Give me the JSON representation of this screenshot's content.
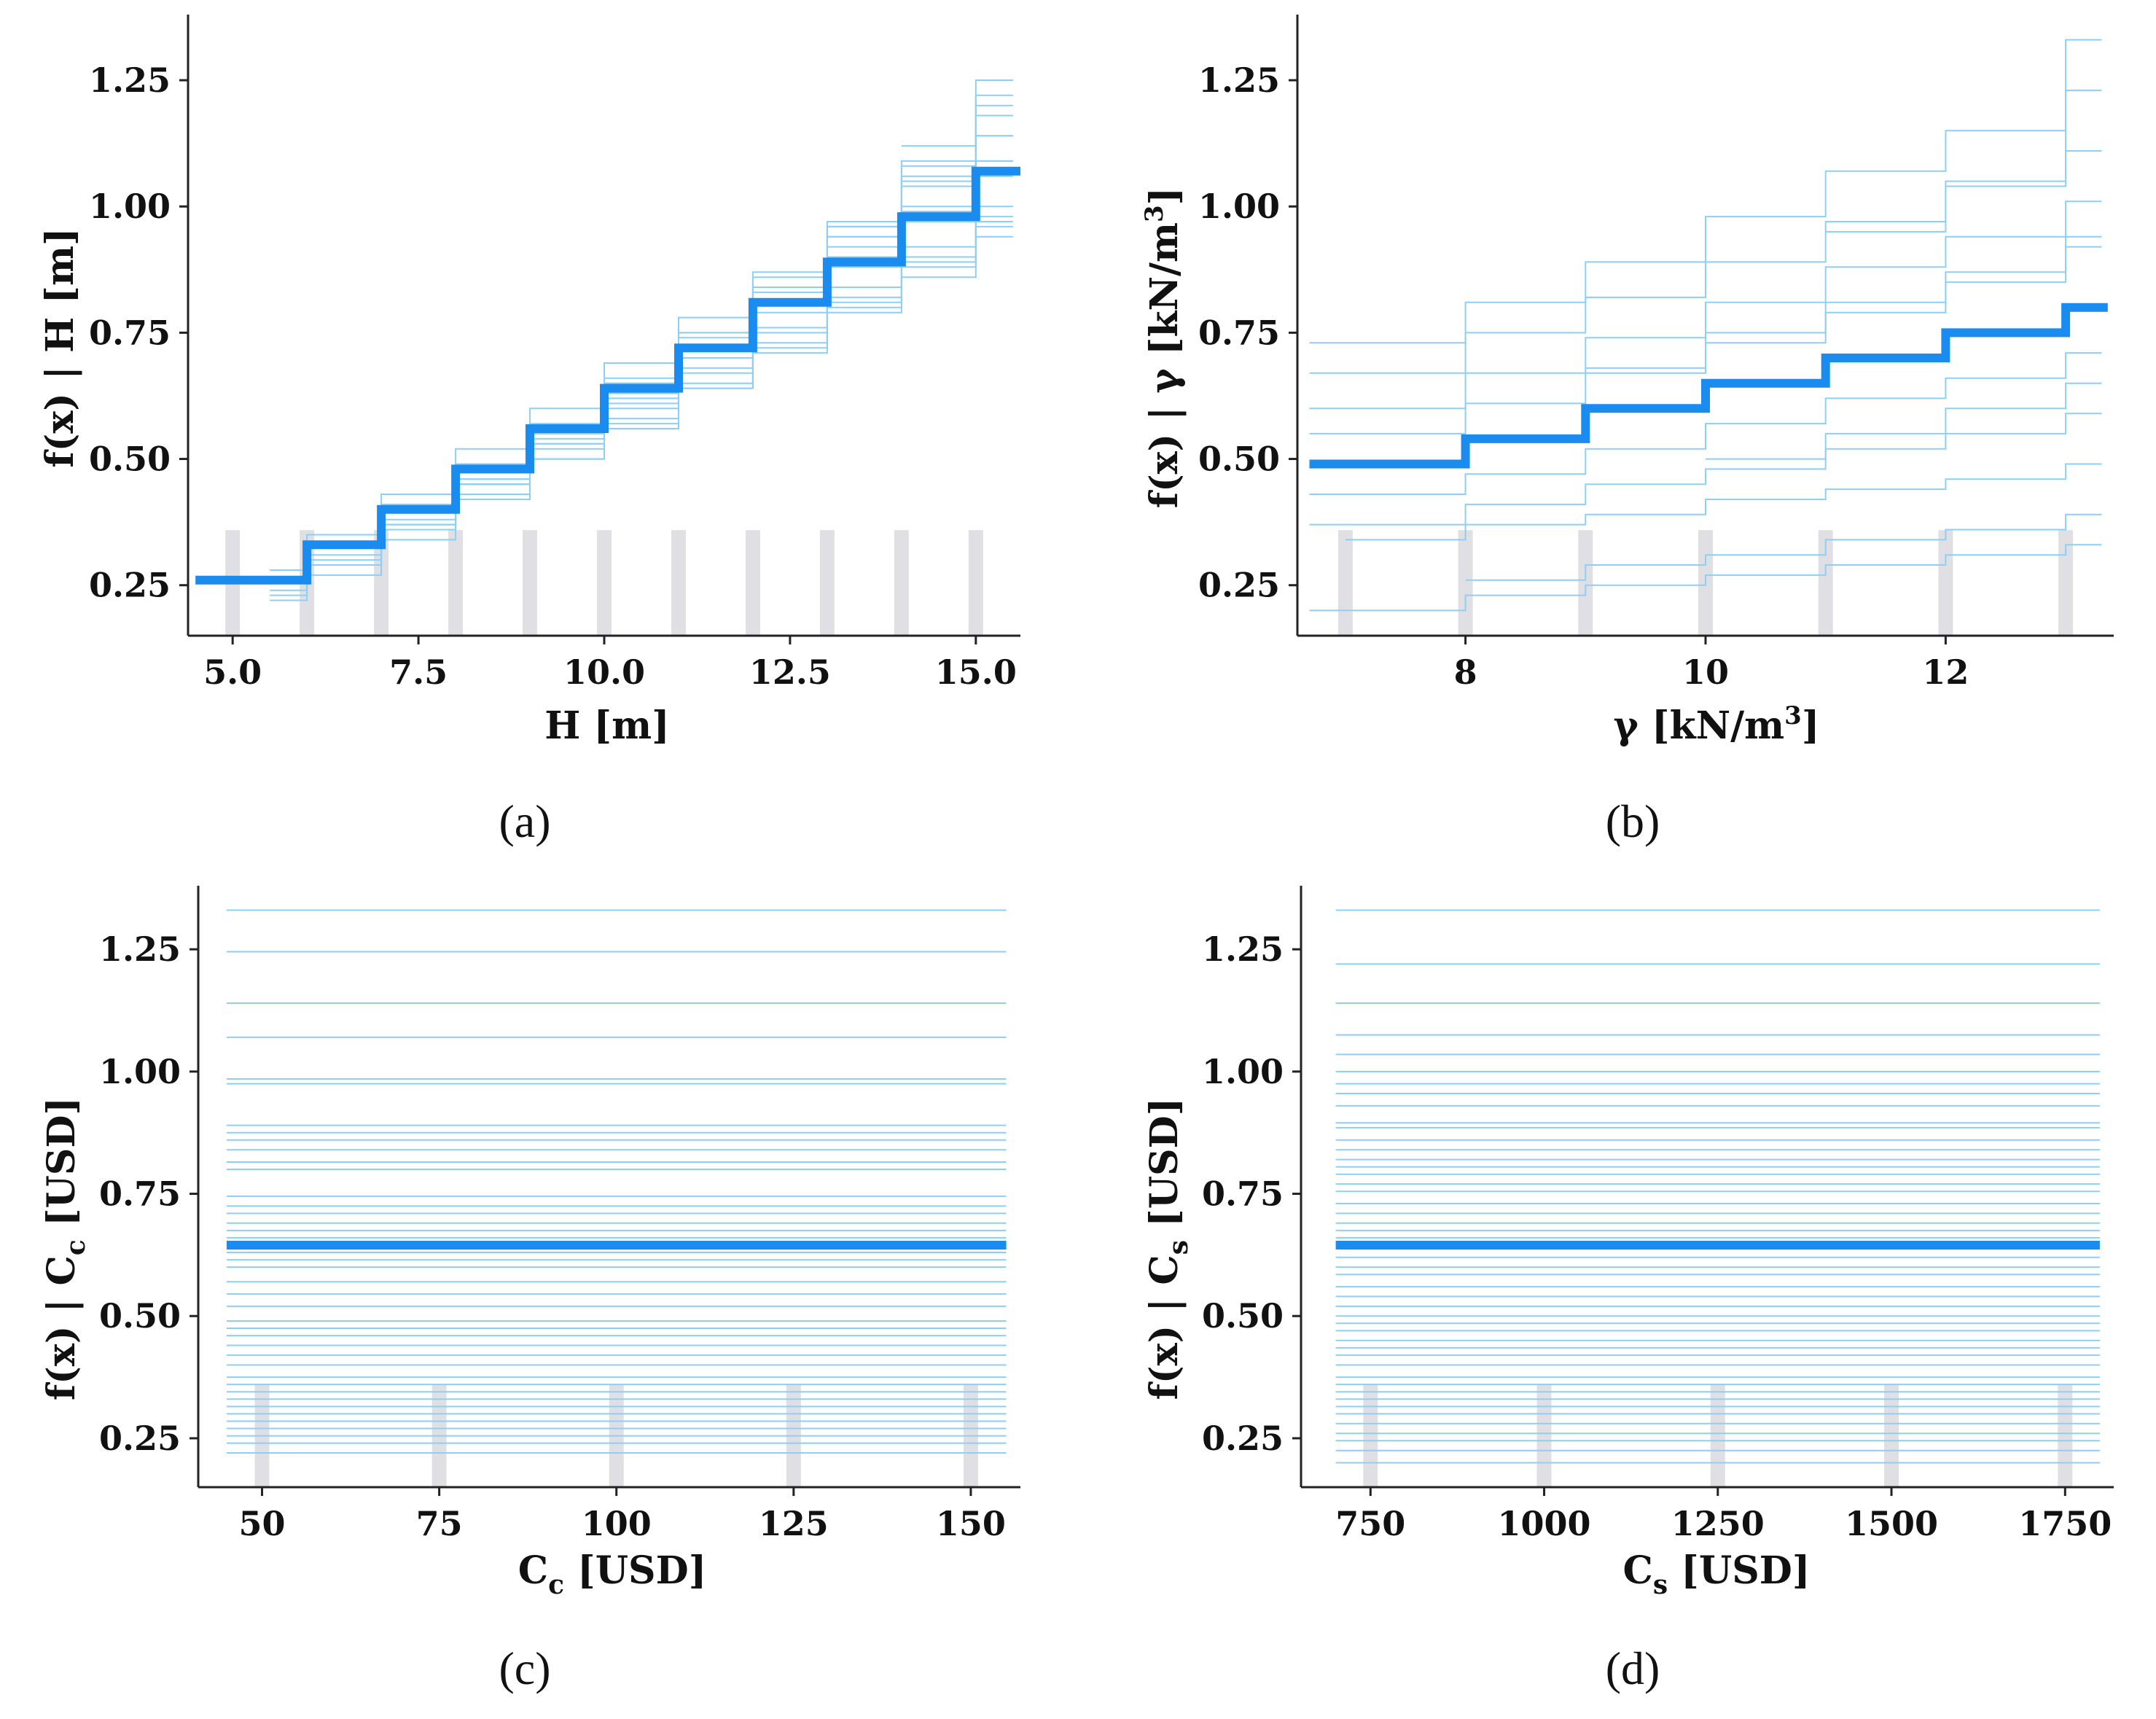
{
  "figure": {
    "panels": [
      "(a)",
      "(b)",
      "(c)",
      "(d)"
    ]
  },
  "colors": {
    "ice_line": "#8ccff7",
    "pdp_line": "#1a8cf0",
    "rug": "#e0e0e4",
    "axis": "#222222"
  },
  "chart_data": [
    {
      "type": "line",
      "panel": "(a)",
      "xlabel": "H [m]",
      "ylabel": "f(x) | H [m]",
      "xlim": [
        4.4,
        15.6
      ],
      "ylim": [
        0.15,
        1.38
      ],
      "xticks": [
        5.0,
        7.5,
        10.0,
        12.5,
        15.0
      ],
      "xtick_labels": [
        "5.0",
        "7.5",
        "10.0",
        "12.5",
        "15.0"
      ],
      "yticks": [
        0.25,
        0.5,
        0.75,
        1.0,
        1.25
      ],
      "ytick_labels": [
        "0.25",
        "0.50",
        "0.75",
        "1.00",
        "1.25"
      ],
      "rug": [
        5,
        6,
        7,
        8,
        9,
        10,
        11,
        12,
        13,
        14,
        15
      ],
      "ice_start": 4.5,
      "ice_end": 15.5,
      "pdp": {
        "x": [
          4.5,
          6,
          7,
          8,
          9,
          10,
          11,
          12,
          13,
          14,
          15,
          15.6
        ],
        "y": [
          0.26,
          0.33,
          0.4,
          0.48,
          0.56,
          0.64,
          0.72,
          0.81,
          0.89,
          0.98,
          1.07,
          1.07
        ]
      },
      "ice": [
        {
          "x": [
            5.5,
            6,
            7,
            8,
            9,
            10,
            11,
            12,
            13,
            14,
            15,
            15.5
          ],
          "y": [
            0.22,
            0.29,
            0.36,
            0.43,
            0.5,
            0.57,
            0.64,
            0.71,
            0.79,
            0.86,
            0.94,
            0.94
          ]
        },
        {
          "x": [
            5.5,
            6,
            7,
            8,
            9,
            10,
            11,
            12,
            13,
            14,
            15,
            15.5
          ],
          "y": [
            0.24,
            0.31,
            0.38,
            0.46,
            0.53,
            0.61,
            0.68,
            0.76,
            0.84,
            0.92,
            1.0,
            1.0
          ]
        },
        {
          "x": [
            5.5,
            6,
            7,
            8,
            9,
            10,
            11,
            12,
            13,
            14,
            15,
            15.5
          ],
          "y": [
            0.26,
            0.33,
            0.41,
            0.49,
            0.57,
            0.66,
            0.75,
            0.83,
            0.92,
            1.0,
            1.09,
            1.09
          ]
        },
        {
          "x": [
            5.5,
            6,
            7,
            8,
            9,
            10,
            11,
            12,
            13,
            14,
            15,
            15.5
          ],
          "y": [
            0.28,
            0.35,
            0.43,
            0.52,
            0.6,
            0.69,
            0.78,
            0.87,
            0.96,
            1.05,
            1.14,
            1.14
          ]
        },
        {
          "x": [
            5.5,
            6,
            7,
            8,
            9,
            10,
            11,
            12,
            13,
            14,
            15,
            15.5
          ],
          "y": [
            0.23,
            0.3,
            0.37,
            0.45,
            0.52,
            0.6,
            0.67,
            0.75,
            0.82,
            0.89,
            0.97,
            0.97
          ]
        },
        {
          "x": [
            6.0,
            7,
            8,
            9,
            10,
            11,
            12,
            13,
            14,
            15,
            15.5
          ],
          "y": [
            0.27,
            0.36,
            0.45,
            0.54,
            0.63,
            0.72,
            0.81,
            0.9,
            0.99,
            1.09,
            1.09
          ]
        },
        {
          "x": [
            7.0,
            8,
            9,
            10,
            11,
            12,
            13,
            14,
            15,
            15.5
          ],
          "y": [
            0.37,
            0.46,
            0.55,
            0.65,
            0.74,
            0.84,
            0.94,
            1.04,
            1.14,
            1.14
          ]
        },
        {
          "x": [
            7.0,
            8,
            9,
            10,
            11,
            12,
            13,
            14,
            15,
            15.5
          ],
          "y": [
            0.34,
            0.42,
            0.5,
            0.58,
            0.65,
            0.73,
            0.81,
            0.9,
            0.98,
            0.98
          ]
        },
        {
          "x": [
            8.0,
            9,
            10,
            11,
            12,
            13,
            14,
            15,
            15.5
          ],
          "y": [
            0.45,
            0.53,
            0.62,
            0.7,
            0.79,
            0.88,
            0.97,
            1.06,
            1.06
          ]
        },
        {
          "x": [
            9.0,
            10,
            11,
            12,
            13,
            14,
            15,
            15.5
          ],
          "y": [
            0.55,
            0.65,
            0.75,
            0.86,
            0.97,
            1.08,
            1.2,
            1.2
          ]
        },
        {
          "x": [
            10.0,
            11,
            12,
            13,
            14,
            15,
            15.5
          ],
          "y": [
            0.56,
            0.64,
            0.72,
            0.8,
            0.88,
            0.96,
            0.96
          ]
        },
        {
          "x": [
            12.0,
            13,
            14,
            15,
            15.5
          ],
          "y": [
            0.84,
            0.96,
            1.09,
            1.22,
            1.22
          ]
        },
        {
          "x": [
            13.0,
            14,
            15,
            15.5
          ],
          "y": [
            0.94,
            1.06,
            1.18,
            1.18
          ]
        },
        {
          "x": [
            14.0,
            15,
            15.5
          ],
          "y": [
            1.12,
            1.25,
            1.25
          ]
        }
      ]
    },
    {
      "type": "line",
      "panel": "(b)",
      "xlabel": "γ [kN/m³]",
      "ylabel": "f(x) | γ [kN/m³]",
      "xlim": [
        6.6,
        13.4
      ],
      "ylim": [
        0.15,
        1.38
      ],
      "xticks": [
        8,
        10,
        12
      ],
      "xtick_labels": [
        "8",
        "10",
        "12"
      ],
      "yticks": [
        0.25,
        0.5,
        0.75,
        1.0,
        1.25
      ],
      "ytick_labels": [
        "0.25",
        "0.50",
        "0.75",
        "1.00",
        "1.25"
      ],
      "rug": [
        7,
        8,
        9,
        10,
        11,
        12,
        13
      ],
      "ice_start": 6.7,
      "ice_end": 13.3,
      "pdp": {
        "x": [
          6.7,
          8,
          9,
          10,
          11,
          12,
          13,
          13.35
        ],
        "y": [
          0.49,
          0.54,
          0.6,
          0.65,
          0.7,
          0.75,
          0.8,
          0.8
        ]
      },
      "ice": [
        {
          "x": [
            6.7,
            8,
            9,
            10,
            11,
            12,
            13,
            13.3
          ],
          "y": [
            0.2,
            0.23,
            0.25,
            0.27,
            0.29,
            0.31,
            0.33,
            0.33
          ]
        },
        {
          "x": [
            6.7,
            8,
            9,
            10,
            11,
            12,
            13,
            13.3
          ],
          "y": [
            0.37,
            0.41,
            0.45,
            0.48,
            0.52,
            0.55,
            0.59,
            0.59
          ]
        },
        {
          "x": [
            6.7,
            8,
            9,
            10,
            11,
            12,
            13,
            13.3
          ],
          "y": [
            0.43,
            0.47,
            0.52,
            0.57,
            0.62,
            0.66,
            0.71,
            0.71
          ]
        },
        {
          "x": [
            6.7,
            8,
            9,
            10,
            11,
            12,
            13,
            13.3
          ],
          "y": [
            0.55,
            0.61,
            0.67,
            0.73,
            0.79,
            0.85,
            0.92,
            0.92
          ]
        },
        {
          "x": [
            6.7,
            8,
            9,
            10,
            11,
            12,
            13,
            13.3
          ],
          "y": [
            0.6,
            0.67,
            0.74,
            0.81,
            0.88,
            0.94,
            1.01,
            1.01
          ]
        },
        {
          "x": [
            6.7,
            8,
            9,
            10,
            11,
            12,
            13,
            13.3
          ],
          "y": [
            0.67,
            0.75,
            0.82,
            0.89,
            0.97,
            1.04,
            1.11,
            1.11
          ]
        },
        {
          "x": [
            6.7,
            8,
            9,
            10,
            11,
            12,
            13,
            13.3
          ],
          "y": [
            0.73,
            0.81,
            0.89,
            0.98,
            1.07,
            1.15,
            1.23,
            1.23
          ]
        },
        {
          "x": [
            7.0,
            8,
            9,
            10,
            11,
            12,
            13,
            13.3
          ],
          "y": [
            0.34,
            0.37,
            0.39,
            0.42,
            0.44,
            0.46,
            0.49,
            0.49
          ]
        },
        {
          "x": [
            8.0,
            9,
            10,
            11,
            12,
            13,
            13.3
          ],
          "y": [
            0.26,
            0.29,
            0.31,
            0.34,
            0.36,
            0.39,
            0.39
          ]
        },
        {
          "x": [
            9.0,
            10,
            11,
            12,
            13,
            13.3
          ],
          "y": [
            0.68,
            0.75,
            0.81,
            0.87,
            0.94,
            0.94
          ]
        },
        {
          "x": [
            10.0,
            11,
            12,
            13,
            13.3
          ],
          "y": [
            0.5,
            0.55,
            0.6,
            0.65,
            0.65
          ]
        },
        {
          "x": [
            11.0,
            12,
            13,
            13.3
          ],
          "y": [
            0.95,
            1.05,
            1.33,
            1.33
          ]
        }
      ]
    },
    {
      "type": "line",
      "panel": "(c)",
      "xlabel": "Cc [USD]",
      "ylabel": "f(x) | Cc [USD]",
      "xlim": [
        41,
        157
      ],
      "ylim": [
        0.15,
        1.38
      ],
      "xticks": [
        50,
        75,
        100,
        125,
        150
      ],
      "xtick_labels": [
        "50",
        "75",
        "100",
        "125",
        "150"
      ],
      "yticks": [
        0.25,
        0.5,
        0.75,
        1.0,
        1.25
      ],
      "ytick_labels": [
        "0.25",
        "0.50",
        "0.75",
        "1.00",
        "1.25"
      ],
      "rug": [
        50,
        75,
        100,
        125,
        150
      ],
      "ice_start": 45,
      "ice_end": 155,
      "pdp": {
        "x": [
          45,
          155
        ],
        "y": [
          0.645,
          0.645
        ]
      },
      "ice_flat": [
        0.22,
        0.24,
        0.255,
        0.27,
        0.285,
        0.3,
        0.315,
        0.33,
        0.345,
        0.36,
        0.375,
        0.4,
        0.42,
        0.44,
        0.46,
        0.475,
        0.49,
        0.52,
        0.545,
        0.57,
        0.6,
        0.615,
        0.63,
        0.66,
        0.675,
        0.69,
        0.71,
        0.725,
        0.745,
        0.8,
        0.815,
        0.84,
        0.86,
        0.875,
        0.89,
        0.975,
        0.985,
        1.07,
        1.14,
        1.245,
        1.33
      ]
    },
    {
      "type": "line",
      "panel": "(d)",
      "xlabel": "Cs [USD]",
      "ylabel": "f(x) | Cs [USD]",
      "xlim": [
        650,
        1820
      ],
      "ylim": [
        0.15,
        1.38
      ],
      "xticks": [
        750,
        1000,
        1250,
        1500,
        1750
      ],
      "xtick_labels": [
        "750",
        "1000",
        "1250",
        "1500",
        "1750"
      ],
      "yticks": [
        0.25,
        0.5,
        0.75,
        1.0,
        1.25
      ],
      "ytick_labels": [
        "0.25",
        "0.50",
        "0.75",
        "1.00",
        "1.25"
      ],
      "rug": [
        750,
        1000,
        1250,
        1500,
        1750
      ],
      "ice_start": 700,
      "ice_end": 1800,
      "pdp": {
        "x": [
          700,
          1800
        ],
        "y": [
          0.645,
          0.645
        ]
      },
      "ice_flat": [
        0.2,
        0.225,
        0.245,
        0.26,
        0.28,
        0.3,
        0.315,
        0.33,
        0.345,
        0.36,
        0.375,
        0.4,
        0.42,
        0.435,
        0.45,
        0.47,
        0.485,
        0.5,
        0.52,
        0.54,
        0.56,
        0.585,
        0.6,
        0.62,
        0.66,
        0.675,
        0.69,
        0.71,
        0.73,
        0.755,
        0.77,
        0.79,
        0.805,
        0.82,
        0.84,
        0.86,
        0.885,
        0.895,
        0.93,
        0.955,
        0.975,
        1.0,
        1.035,
        1.075,
        1.14,
        1.22,
        1.33
      ]
    }
  ]
}
